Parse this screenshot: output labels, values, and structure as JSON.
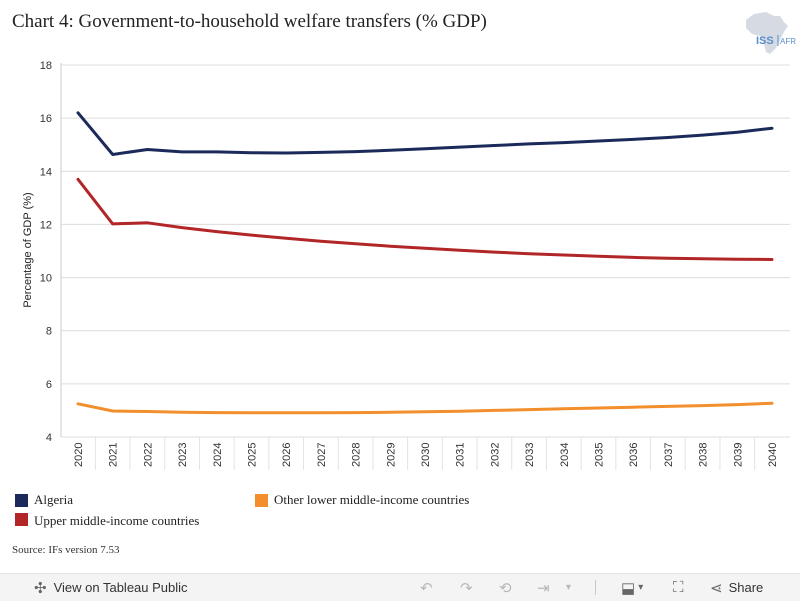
{
  "title": "Chart 4: Government-to-household welfare transfers (% GDP)",
  "logo": {
    "text": "ISS",
    "text2": "AFR",
    "accent": "#5b8fc9"
  },
  "source": "Source: IFs version 7.53",
  "toolbar": {
    "view_label": "View on Tableau Public",
    "share_label": "Share"
  },
  "chart_data": {
    "type": "line",
    "x": [
      "2020",
      "2021",
      "2022",
      "2023",
      "2024",
      "2025",
      "2026",
      "2027",
      "2028",
      "2029",
      "2030",
      "2031",
      "2032",
      "2033",
      "2034",
      "2035",
      "2036",
      "2037",
      "2038",
      "2039",
      "2040"
    ],
    "ylabel": "Percentage of GDP (%)",
    "ylim": [
      4,
      18
    ],
    "yticks": [
      4,
      6,
      8,
      10,
      12,
      14,
      16,
      18
    ],
    "grid": true,
    "legend_position": "bottom",
    "series": [
      {
        "name": "Algeria",
        "color": "#1b2a5a",
        "values": [
          16.2,
          14.63,
          14.82,
          14.73,
          14.73,
          14.7,
          14.69,
          14.71,
          14.74,
          14.79,
          14.85,
          14.91,
          14.97,
          15.03,
          15.08,
          15.14,
          15.2,
          15.27,
          15.36,
          15.47,
          15.62
        ]
      },
      {
        "name": "Upper middle-income countries",
        "color": "#b22628",
        "values": [
          13.7,
          12.02,
          12.06,
          11.88,
          11.73,
          11.6,
          11.48,
          11.37,
          11.27,
          11.18,
          11.1,
          11.03,
          10.96,
          10.9,
          10.85,
          10.8,
          10.76,
          10.73,
          10.71,
          10.69,
          10.68
        ]
      },
      {
        "name": "Other lower middle-income countries",
        "color": "#f28e2b",
        "values": [
          5.25,
          4.98,
          4.96,
          4.93,
          4.92,
          4.91,
          4.91,
          4.91,
          4.92,
          4.93,
          4.95,
          4.97,
          5.0,
          5.03,
          5.06,
          5.09,
          5.12,
          5.15,
          5.18,
          5.22,
          5.27
        ]
      }
    ]
  }
}
